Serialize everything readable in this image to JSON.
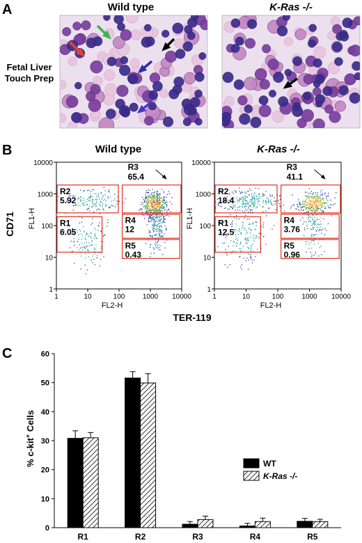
{
  "panel_a": {
    "letter": "A",
    "row_label": [
      "Fetal Liver",
      "Touch Prep"
    ],
    "titles": [
      "Wild type",
      "K-Ras -/-"
    ],
    "colors": {
      "background": "#ece0ee",
      "cell_dark": "#3a2b8c",
      "cell_mid": "#7a3e9e",
      "cell_pink": "#c487c2",
      "rbc": "#e8c6e0"
    },
    "arrows": [
      {
        "panel": 0,
        "color": "#e8402a"
      },
      {
        "panel": 0,
        "color": "#39b54a"
      },
      {
        "panel": 0,
        "color": "#000000"
      },
      {
        "panel": 0,
        "color": "#2b2bb0"
      },
      {
        "panel": 0,
        "color": "#4a35c8"
      },
      {
        "panel": 1,
        "color": "#000000"
      }
    ]
  },
  "panel_b": {
    "letter": "B",
    "titles": [
      "Wild type",
      "K-Ras -/-"
    ],
    "ylabel": "CD71",
    "xlabel": "TER-119",
    "inner_ylabel": "FL1-H",
    "inner_xlabel": "FL2-H",
    "tick_labels": [
      "1",
      "10",
      "100",
      "1000",
      "10000"
    ],
    "gate_color": "#e03020",
    "plots": [
      {
        "gates": [
          {
            "name": "R1",
            "value": "6.05"
          },
          {
            "name": "R2",
            "value": "5.92"
          },
          {
            "name": "R3",
            "value": "65.4"
          },
          {
            "name": "R4",
            "value": "12"
          },
          {
            "name": "R5",
            "value": "0.43"
          }
        ]
      },
      {
        "gates": [
          {
            "name": "R1",
            "value": "12.5"
          },
          {
            "name": "R2",
            "value": "18.4"
          },
          {
            "name": "R3",
            "value": "41.1"
          },
          {
            "name": "R4",
            "value": "3.76"
          },
          {
            "name": "R5",
            "value": "0.96"
          }
        ]
      }
    ]
  },
  "chart_data": {
    "type": "bar",
    "panel_letter": "C",
    "title": "",
    "xlabel": "",
    "ylabel_parts": [
      "% c-kit",
      "+",
      " Cells"
    ],
    "categories": [
      "R1",
      "R2",
      "R3",
      "R4",
      "R5"
    ],
    "yticks": [
      0,
      10,
      20,
      30,
      40,
      50,
      60
    ],
    "ylim": [
      0,
      60
    ],
    "grid": false,
    "legend_position": "right-middle",
    "series": [
      {
        "name": "WT",
        "fill": "solid",
        "color": "#000000",
        "values": [
          30.8,
          51.6,
          1.2,
          0.6,
          2.2
        ],
        "errors": [
          2.6,
          2.2,
          0.9,
          0.9,
          1.0
        ]
      },
      {
        "name": "K-Ras -/-",
        "fill": "hatched",
        "color": "#000000",
        "values": [
          31.0,
          49.9,
          2.8,
          2.1,
          2.1
        ],
        "errors": [
          1.8,
          3.2,
          1.2,
          1.2,
          0.8
        ]
      }
    ]
  }
}
